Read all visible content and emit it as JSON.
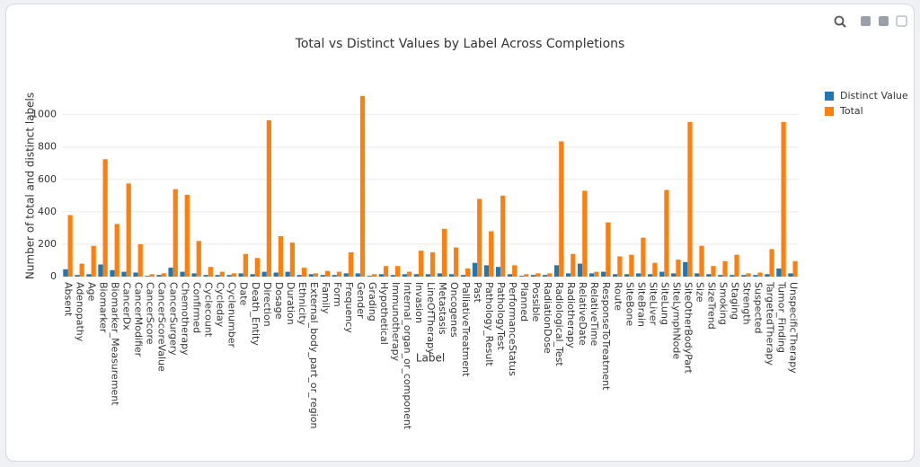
{
  "chart_data": {
    "type": "bar",
    "title": "Total vs Distinct Values by Label Across Completions",
    "x_label": "Label",
    "y_label": "Number of total and distinct labels",
    "categories": [
      "Absent",
      "Adenopathy",
      "Age",
      "Biomarker",
      "Biomarker_Measurement",
      "CancerDx",
      "CancerModifier",
      "CancerScore",
      "CancerScoreValue",
      "CancerSurgery",
      "Chemotherapy",
      "Confirmed",
      "Cyclecount",
      "Cycleday",
      "Cyclenumber",
      "Date",
      "Death_Entity",
      "Direction",
      "Dosage",
      "Duration",
      "Ethnicity",
      "External_body_part_or_region",
      "Family",
      "Form",
      "Frequency",
      "Gender",
      "Grading",
      "Hypothetical",
      "Immunotherapy",
      "Internal_organ_or_component",
      "Invasion",
      "LineOfTherapy",
      "Metastasis",
      "Oncogenes",
      "PalliativeTreatment",
      "Past",
      "Pathology_Result",
      "PathologyTest",
      "PerformanceStatus",
      "Planned",
      "Possible",
      "RadiationDose",
      "Radiological_Test",
      "Radiotherapy",
      "RelativeDate",
      "RelativeTime",
      "ResponseToTreatment",
      "Route",
      "SiteBone",
      "SiteBrain",
      "SiteLiver",
      "SiteLung",
      "SiteLymphNode",
      "SiteOtherBodyPart",
      "Size",
      "SizeTrend",
      "Smoking",
      "Staging",
      "Strength",
      "Suspected",
      "TargetedTherapy",
      "Tumor_Finding",
      "UnspecificTherapy"
    ],
    "series": [
      {
        "name": "Distinct Value",
        "color": "#1f77b4",
        "values": [
          45,
          10,
          15,
          75,
          40,
          30,
          25,
          5,
          10,
          55,
          30,
          20,
          10,
          10,
          10,
          20,
          15,
          30,
          25,
          30,
          10,
          15,
          10,
          10,
          20,
          20,
          5,
          15,
          10,
          15,
          15,
          15,
          20,
          15,
          10,
          85,
          70,
          60,
          15,
          5,
          10,
          10,
          70,
          20,
          80,
          20,
          30,
          15,
          15,
          20,
          15,
          30,
          20,
          90,
          20,
          15,
          10,
          10,
          10,
          10,
          15,
          50,
          20
        ]
      },
      {
        "name": "Total",
        "color": "#ff7f0e",
        "values": [
          380,
          80,
          190,
          725,
          325,
          575,
          200,
          15,
          20,
          540,
          505,
          220,
          60,
          30,
          20,
          140,
          115,
          965,
          250,
          210,
          55,
          20,
          35,
          30,
          150,
          1115,
          15,
          65,
          65,
          30,
          160,
          150,
          295,
          180,
          50,
          480,
          280,
          500,
          70,
          15,
          20,
          20,
          835,
          140,
          530,
          30,
          335,
          125,
          135,
          240,
          85,
          535,
          105,
          955,
          190,
          65,
          95,
          135,
          20,
          25,
          170,
          955,
          95
        ]
      }
    ],
    "ylim": [
      0,
      1170
    ],
    "yticks": [
      0,
      200,
      400,
      600,
      800,
      1000
    ],
    "grid": true,
    "legend": "top-right"
  }
}
